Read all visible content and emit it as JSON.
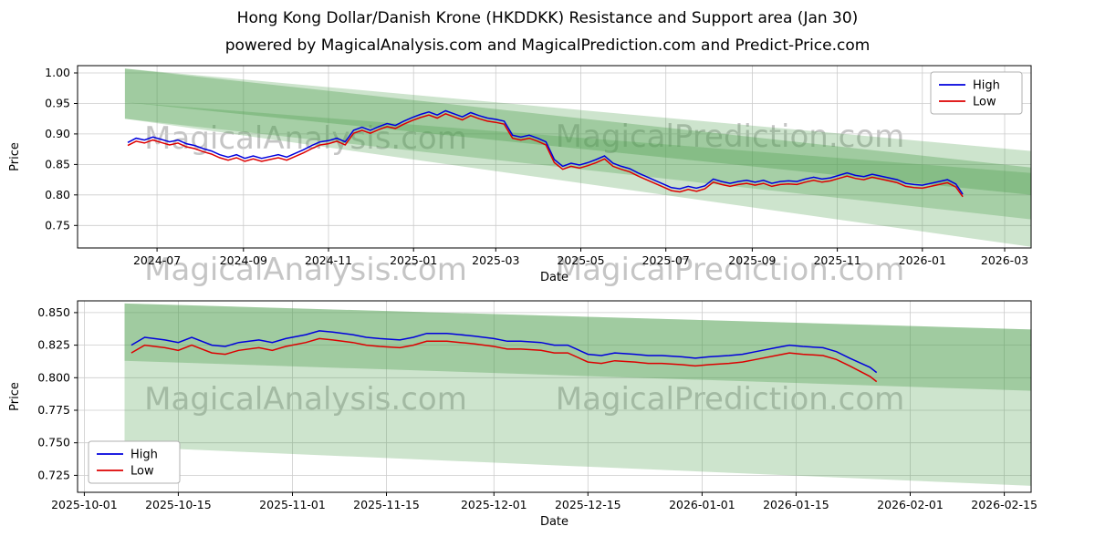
{
  "header": {
    "title": "Hong Kong Dollar/Danish Krone (HKDDKK) Resistance and Support area (Jan 30)",
    "subtitle": "powered by MagicalAnalysis.com and MagicalPrediction.com and Predict-Price.com"
  },
  "watermarks": {
    "analysis": "MagicalAnalysis.com",
    "prediction": "MagicalPrediction.com"
  },
  "colors": {
    "high": "#0000dd",
    "low": "#dd0000",
    "band": "#4c9f4c",
    "grid": "#cccccc"
  },
  "chart_data": [
    {
      "type": "line",
      "title": "",
      "xlabel": "Date",
      "ylabel": "Price",
      "xlim": [
        "2024-05-05",
        "2026-03-20"
      ],
      "ylim": [
        0.713,
        1.012
      ],
      "legend_pos": "top-right",
      "x_ticks": [
        {
          "label": "2024-07",
          "date": "2024-07-01"
        },
        {
          "label": "2024-09",
          "date": "2024-09-01"
        },
        {
          "label": "2024-11",
          "date": "2024-11-01"
        },
        {
          "label": "2025-01",
          "date": "2025-01-01"
        },
        {
          "label": "2025-03",
          "date": "2025-03-01"
        },
        {
          "label": "2025-05",
          "date": "2025-05-01"
        },
        {
          "label": "2025-07",
          "date": "2025-07-01"
        },
        {
          "label": "2025-09",
          "date": "2025-09-01"
        },
        {
          "label": "2025-11",
          "date": "2025-11-01"
        },
        {
          "label": "2026-01",
          "date": "2026-01-01"
        },
        {
          "label": "2026-03",
          "date": "2026-03-01"
        }
      ],
      "y_ticks": [
        {
          "label": "0.75",
          "value": 0.75
        },
        {
          "label": "0.80",
          "value": 0.8
        },
        {
          "label": "0.85",
          "value": 0.85
        },
        {
          "label": "0.90",
          "value": 0.9
        },
        {
          "label": "0.95",
          "value": 0.95
        },
        {
          "label": "1.00",
          "value": 1.0
        }
      ],
      "bands": [
        {
          "color": "#4c9f4c",
          "opacity": 0.28,
          "points": [
            [
              "2024-06-08",
              1.007
            ],
            [
              "2026-03-20",
              0.872
            ],
            [
              "2026-03-20",
              0.715
            ],
            [
              "2024-06-08",
              0.925
            ]
          ]
        },
        {
          "color": "#4c9f4c",
          "opacity": 0.35,
          "points": [
            [
              "2024-06-08",
              1.007
            ],
            [
              "2026-03-20",
              0.845
            ],
            [
              "2026-03-20",
              0.8
            ],
            [
              "2024-06-08",
              0.952
            ]
          ]
        },
        {
          "color": "#4c9f4c",
          "opacity": 0.3,
          "points": [
            [
              "2024-06-08",
              0.952
            ],
            [
              "2026-03-20",
              0.836
            ],
            [
              "2026-03-20",
              0.76
            ],
            [
              "2024-06-08",
              0.925
            ]
          ]
        }
      ],
      "x": [
        "2024-06-10",
        "2024-06-16",
        "2024-06-22",
        "2024-06-28",
        "2024-07-04",
        "2024-07-10",
        "2024-07-16",
        "2024-07-22",
        "2024-07-28",
        "2024-08-03",
        "2024-08-09",
        "2024-08-15",
        "2024-08-21",
        "2024-08-27",
        "2024-09-02",
        "2024-09-08",
        "2024-09-14",
        "2024-09-20",
        "2024-09-26",
        "2024-10-02",
        "2024-10-08",
        "2024-10-14",
        "2024-10-20",
        "2024-10-26",
        "2024-11-01",
        "2024-11-07",
        "2024-11-13",
        "2024-11-19",
        "2024-11-25",
        "2024-12-01",
        "2024-12-07",
        "2024-12-13",
        "2024-12-19",
        "2024-12-25",
        "2024-12-31",
        "2025-01-06",
        "2025-01-12",
        "2025-01-18",
        "2025-01-24",
        "2025-01-30",
        "2025-02-05",
        "2025-02-11",
        "2025-02-17",
        "2025-02-23",
        "2025-03-01",
        "2025-03-07",
        "2025-03-13",
        "2025-03-19",
        "2025-03-25",
        "2025-03-31",
        "2025-04-06",
        "2025-04-12",
        "2025-04-18",
        "2025-04-24",
        "2025-04-30",
        "2025-05-06",
        "2025-05-12",
        "2025-05-18",
        "2025-05-24",
        "2025-05-30",
        "2025-06-05",
        "2025-06-11",
        "2025-06-17",
        "2025-06-23",
        "2025-06-29",
        "2025-07-05",
        "2025-07-11",
        "2025-07-17",
        "2025-07-23",
        "2025-07-29",
        "2025-08-04",
        "2025-08-10",
        "2025-08-16",
        "2025-08-22",
        "2025-08-28",
        "2025-09-03",
        "2025-09-09",
        "2025-09-15",
        "2025-09-21",
        "2025-09-27",
        "2025-10-03",
        "2025-10-09",
        "2025-10-15",
        "2025-10-21",
        "2025-10-27",
        "2025-11-02",
        "2025-11-08",
        "2025-11-14",
        "2025-11-20",
        "2025-11-26",
        "2025-12-02",
        "2025-12-08",
        "2025-12-14",
        "2025-12-20",
        "2025-12-26",
        "2026-01-01",
        "2026-01-07",
        "2026-01-13",
        "2026-01-19",
        "2026-01-25",
        "2026-01-30"
      ],
      "series": [
        {
          "name": "High",
          "color": "#0000dd",
          "values": [
            0.886,
            0.893,
            0.89,
            0.895,
            0.891,
            0.887,
            0.89,
            0.884,
            0.881,
            0.876,
            0.872,
            0.866,
            0.862,
            0.866,
            0.86,
            0.864,
            0.86,
            0.863,
            0.866,
            0.862,
            0.868,
            0.874,
            0.881,
            0.887,
            0.889,
            0.893,
            0.887,
            0.906,
            0.911,
            0.906,
            0.912,
            0.917,
            0.914,
            0.921,
            0.927,
            0.932,
            0.936,
            0.931,
            0.938,
            0.933,
            0.928,
            0.935,
            0.93,
            0.926,
            0.924,
            0.921,
            0.898,
            0.895,
            0.898,
            0.893,
            0.887,
            0.858,
            0.847,
            0.852,
            0.849,
            0.853,
            0.858,
            0.864,
            0.852,
            0.847,
            0.843,
            0.836,
            0.83,
            0.824,
            0.818,
            0.812,
            0.81,
            0.814,
            0.811,
            0.815,
            0.826,
            0.822,
            0.819,
            0.822,
            0.824,
            0.821,
            0.824,
            0.819,
            0.822,
            0.823,
            0.822,
            0.826,
            0.829,
            0.826,
            0.828,
            0.832,
            0.836,
            0.832,
            0.83,
            0.834,
            0.831,
            0.828,
            0.825,
            0.819,
            0.817,
            0.816,
            0.819,
            0.822,
            0.825,
            0.818,
            0.801
          ]
        },
        {
          "name": "Low",
          "color": "#dd0000",
          "values": [
            0.881,
            0.888,
            0.885,
            0.89,
            0.886,
            0.882,
            0.885,
            0.879,
            0.876,
            0.871,
            0.867,
            0.861,
            0.857,
            0.861,
            0.855,
            0.859,
            0.855,
            0.858,
            0.861,
            0.857,
            0.863,
            0.869,
            0.876,
            0.882,
            0.884,
            0.888,
            0.882,
            0.901,
            0.906,
            0.901,
            0.907,
            0.912,
            0.909,
            0.916,
            0.922,
            0.927,
            0.931,
            0.926,
            0.933,
            0.928,
            0.923,
            0.93,
            0.925,
            0.921,
            0.919,
            0.916,
            0.893,
            0.89,
            0.893,
            0.888,
            0.882,
            0.853,
            0.842,
            0.847,
            0.844,
            0.848,
            0.853,
            0.859,
            0.847,
            0.842,
            0.838,
            0.831,
            0.825,
            0.819,
            0.813,
            0.807,
            0.805,
            0.809,
            0.806,
            0.81,
            0.821,
            0.817,
            0.814,
            0.817,
            0.819,
            0.816,
            0.819,
            0.814,
            0.817,
            0.818,
            0.817,
            0.821,
            0.824,
            0.821,
            0.823,
            0.827,
            0.831,
            0.827,
            0.825,
            0.829,
            0.826,
            0.823,
            0.82,
            0.814,
            0.812,
            0.811,
            0.814,
            0.817,
            0.82,
            0.813,
            0.797
          ]
        }
      ]
    },
    {
      "type": "line",
      "title": "",
      "xlabel": "Date",
      "ylabel": "Price",
      "xlim": [
        "2025-09-30",
        "2026-02-19"
      ],
      "ylim": [
        0.712,
        0.859
      ],
      "legend_pos": "bottom-left",
      "x_ticks": [
        {
          "label": "2025-10-01",
          "date": "2025-10-01"
        },
        {
          "label": "2025-10-15",
          "date": "2025-10-15"
        },
        {
          "label": "2025-11-01",
          "date": "2025-11-01"
        },
        {
          "label": "2025-11-15",
          "date": "2025-11-15"
        },
        {
          "label": "2025-12-01",
          "date": "2025-12-01"
        },
        {
          "label": "2025-12-15",
          "date": "2025-12-15"
        },
        {
          "label": "2026-01-01",
          "date": "2026-01-01"
        },
        {
          "label": "2026-01-15",
          "date": "2026-01-15"
        },
        {
          "label": "2026-02-01",
          "date": "2026-02-01"
        },
        {
          "label": "2026-02-15",
          "date": "2026-02-15"
        }
      ],
      "y_ticks": [
        {
          "label": "0.725",
          "value": 0.725
        },
        {
          "label": "0.750",
          "value": 0.75
        },
        {
          "label": "0.775",
          "value": 0.775
        },
        {
          "label": "0.800",
          "value": 0.8
        },
        {
          "label": "0.825",
          "value": 0.825
        },
        {
          "label": "0.850",
          "value": 0.85
        }
      ],
      "bands": [
        {
          "color": "#4c9f4c",
          "opacity": 0.28,
          "points": [
            [
              "2025-10-07",
              0.857
            ],
            [
              "2026-02-19",
              0.837
            ],
            [
              "2026-02-19",
              0.717
            ],
            [
              "2025-10-07",
              0.747
            ]
          ]
        },
        {
          "color": "#4c9f4c",
          "opacity": 0.35,
          "points": [
            [
              "2025-10-07",
              0.857
            ],
            [
              "2026-02-19",
              0.837
            ],
            [
              "2026-02-19",
              0.79
            ],
            [
              "2025-10-07",
              0.813
            ]
          ]
        }
      ],
      "x": [
        "2025-10-08",
        "2025-10-10",
        "2025-10-13",
        "2025-10-15",
        "2025-10-17",
        "2025-10-20",
        "2025-10-22",
        "2025-10-24",
        "2025-10-27",
        "2025-10-29",
        "2025-10-31",
        "2025-11-03",
        "2025-11-05",
        "2025-11-07",
        "2025-11-10",
        "2025-11-12",
        "2025-11-14",
        "2025-11-17",
        "2025-11-19",
        "2025-11-21",
        "2025-11-24",
        "2025-11-26",
        "2025-11-28",
        "2025-12-01",
        "2025-12-03",
        "2025-12-05",
        "2025-12-08",
        "2025-12-10",
        "2025-12-12",
        "2025-12-15",
        "2025-12-17",
        "2025-12-19",
        "2025-12-22",
        "2025-12-24",
        "2025-12-26",
        "2025-12-29",
        "2025-12-31",
        "2026-01-02",
        "2026-01-05",
        "2026-01-07",
        "2026-01-09",
        "2026-01-12",
        "2026-01-14",
        "2026-01-16",
        "2026-01-19",
        "2026-01-21",
        "2026-01-23",
        "2026-01-26",
        "2026-01-27"
      ],
      "series": [
        {
          "name": "High",
          "color": "#0000dd",
          "values": [
            0.825,
            0.831,
            0.829,
            0.827,
            0.831,
            0.825,
            0.824,
            0.827,
            0.829,
            0.827,
            0.83,
            0.833,
            0.836,
            0.835,
            0.833,
            0.831,
            0.83,
            0.829,
            0.831,
            0.834,
            0.834,
            0.833,
            0.832,
            0.83,
            0.828,
            0.828,
            0.827,
            0.825,
            0.825,
            0.818,
            0.817,
            0.819,
            0.818,
            0.817,
            0.817,
            0.816,
            0.815,
            0.816,
            0.817,
            0.818,
            0.82,
            0.823,
            0.825,
            0.824,
            0.823,
            0.82,
            0.815,
            0.808,
            0.804
          ]
        },
        {
          "name": "Low",
          "color": "#dd0000",
          "values": [
            0.819,
            0.825,
            0.823,
            0.821,
            0.825,
            0.819,
            0.818,
            0.821,
            0.823,
            0.821,
            0.824,
            0.827,
            0.83,
            0.829,
            0.827,
            0.825,
            0.824,
            0.823,
            0.825,
            0.828,
            0.828,
            0.827,
            0.826,
            0.824,
            0.822,
            0.822,
            0.821,
            0.819,
            0.819,
            0.812,
            0.811,
            0.813,
            0.812,
            0.811,
            0.811,
            0.81,
            0.809,
            0.81,
            0.811,
            0.812,
            0.814,
            0.817,
            0.819,
            0.818,
            0.817,
            0.814,
            0.809,
            0.801,
            0.797
          ]
        }
      ]
    }
  ]
}
